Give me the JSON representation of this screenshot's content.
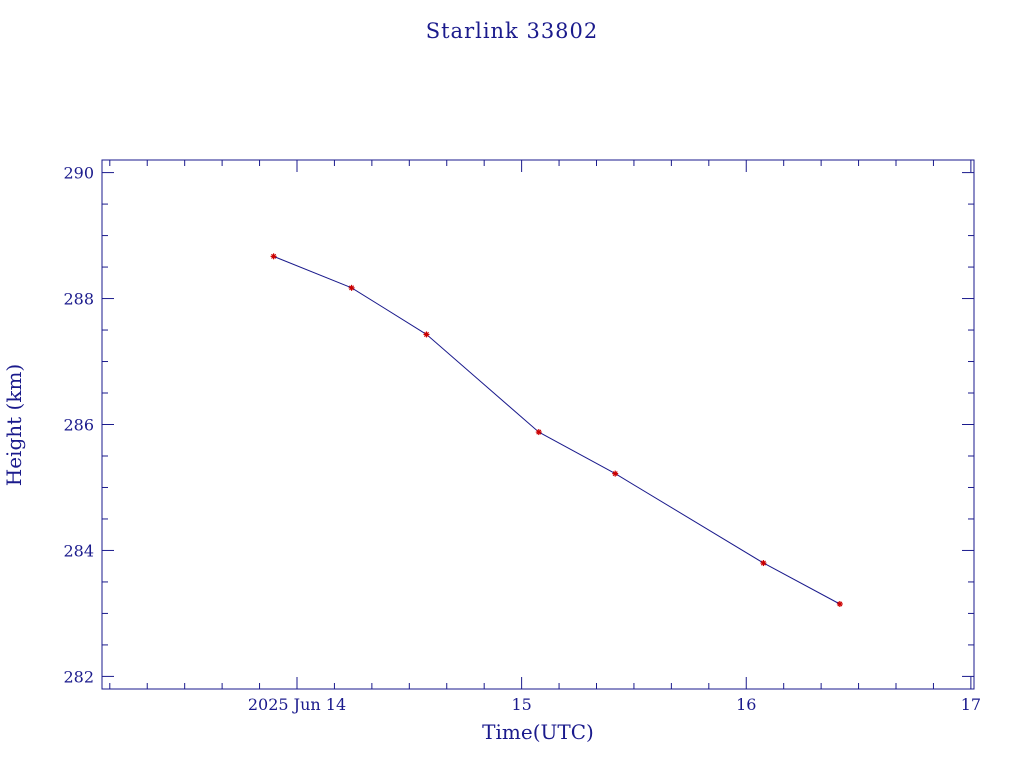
{
  "chart_data": {
    "type": "line",
    "title": "Starlink 33802",
    "xlabel": "Time(UTC)",
    "ylabel": "Height (km)",
    "x_tick_labels": [
      "2025 Jun 14",
      "15",
      "16",
      "17"
    ],
    "y_tick_labels": [
      "282",
      "284",
      "286",
      "288",
      "290"
    ],
    "x_ticks": [
      "2025-06-14T00:00",
      "2025-06-15T00:00",
      "2025-06-16T00:00",
      "2025-06-17T00:00"
    ],
    "y_ticks": [
      282,
      284,
      286,
      288,
      290
    ],
    "xlim": [
      "2025-06-13T03:10",
      "2025-06-17T00:20"
    ],
    "ylim": [
      281.8,
      290.2
    ],
    "grid": false,
    "series": [
      {
        "x": [
          "2025-06-13T21:30",
          "2025-06-14T05:50",
          "2025-06-14T13:50",
          "2025-06-15T01:50",
          "2025-06-15T10:00",
          "2025-06-16T01:50",
          "2025-06-16T10:00"
        ],
        "y": [
          288.67,
          288.17,
          287.43,
          285.88,
          285.22,
          283.8,
          283.15
        ]
      }
    ],
    "colors": {
      "axes": "#1a1a8c",
      "line": "#1a1a8c",
      "markers": "#cc0000"
    }
  }
}
